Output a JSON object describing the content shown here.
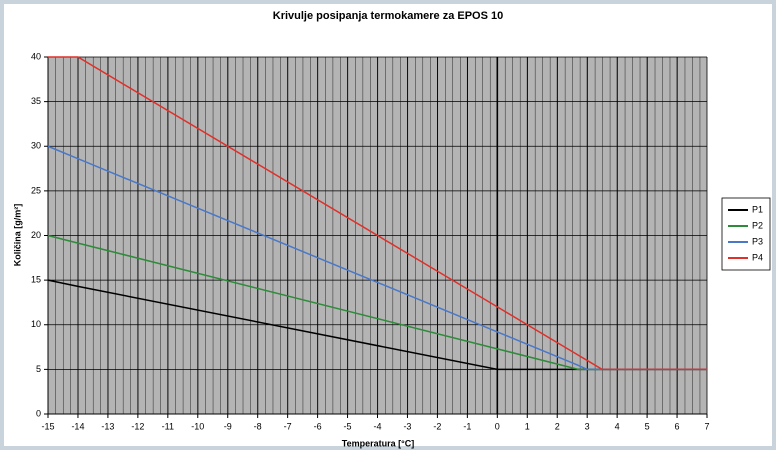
{
  "chart_data": {
    "type": "line",
    "title": "Krivulje posipanja termokamere za EPOS 10",
    "x_label": "Temperatura [°C]",
    "y_label": "Količina [g/m²]",
    "x": [
      -15,
      -14,
      0,
      2.7,
      3,
      3.5,
      7
    ],
    "series": [
      {
        "name": "P1",
        "color": "#000000",
        "values": [
          15,
          14.3,
          5,
          5,
          5,
          5,
          5
        ]
      },
      {
        "name": "P2",
        "color": "#2e8b3a",
        "values": [
          20,
          19.15,
          7.3,
          5,
          5,
          5,
          5
        ]
      },
      {
        "name": "P3",
        "color": "#4a78c8",
        "values": [
          30,
          28.6,
          9.2,
          5.45,
          5,
          5,
          5
        ]
      },
      {
        "name": "P4",
        "color": "#e0302a",
        "values": [
          40,
          40,
          12,
          6.6,
          6,
          5,
          5
        ]
      }
    ],
    "xlim": [
      -15,
      7
    ],
    "xticks": [
      -15,
      -14,
      -13,
      -12,
      -11,
      -10,
      -9,
      -8,
      -7,
      -6,
      -5,
      -4,
      -3,
      -2,
      -1,
      0,
      1,
      2,
      3,
      4,
      5,
      6,
      7
    ],
    "ylim": [
      0,
      40
    ],
    "yticks": [
      0,
      5,
      10,
      15,
      20,
      25,
      30,
      35,
      40
    ],
    "grid": true,
    "legend": "right"
  }
}
